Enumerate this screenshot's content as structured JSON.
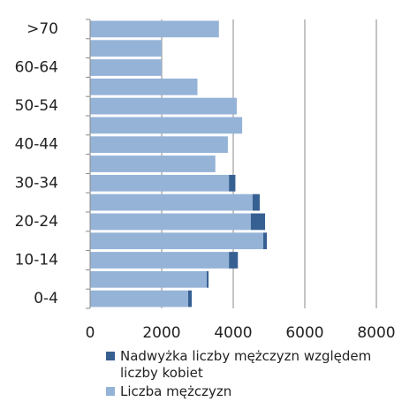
{
  "chart_data": {
    "type": "stacked-barh",
    "categories": [
      "0-4",
      null,
      "10-14",
      null,
      "20-24",
      null,
      "30-34",
      null,
      "40-44",
      null,
      "50-54",
      null,
      "60-64",
      null,
      ">70"
    ],
    "series": [
      {
        "name": "Nadwyżka liczby mężczyzn względem liczby kobiet",
        "color": "#376092",
        "values": [
          100,
          50,
          250,
          100,
          400,
          200,
          180,
          0,
          0,
          0,
          0,
          0,
          0,
          0,
          0
        ]
      },
      {
        "name": "Liczba mężczyzn",
        "color": "#95b3d7",
        "values": [
          2740,
          3260,
          3880,
          4840,
          4490,
          4540,
          3880,
          3500,
          3850,
          4250,
          4100,
          3000,
          2000,
          2000,
          3600
        ]
      }
    ],
    "xlim": [
      0,
      8000
    ],
    "xticks": [
      0,
      2000,
      4000,
      6000,
      8000
    ],
    "grid": true
  }
}
